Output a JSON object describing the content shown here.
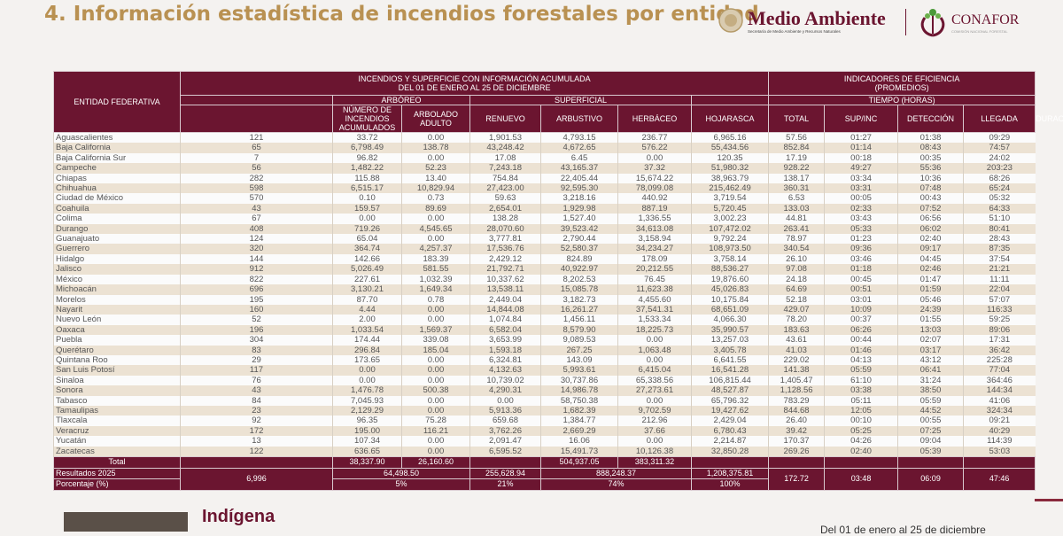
{
  "title": "4. Información estadística de incendios forestales por entidad",
  "logos": {
    "medio_ambiente": "Medio Ambiente",
    "medio_ambiente_sub": "Secretaría de Medio Ambiente y Recursos Naturales",
    "conafor": "CONAFOR",
    "conafor_sub": "COMISIÓN NACIONAL FORESTAL"
  },
  "colors": {
    "header_bg": "#6b1530",
    "title": "#b99152",
    "row_alt": "#ece2d3"
  },
  "table": {
    "headers": {
      "entidad": "ENTIDAD FEDERATIVA",
      "group_main": "INCENDIOS Y SUPERFICIE CON INFORMACIÓN ACUMULADA",
      "group_main_dates": "DEL 01 DE ENERO AL 25 DE DICIEMBRE",
      "group_indicators": "INDICADORES DE EFICIENCIA",
      "group_indicators_sub": "(PROMEDIOS)",
      "arboreo": "ARBÓREO",
      "superficial": "SUPERFICIAL",
      "tiempo": "TIEMPO  (HORAS)",
      "columns": [
        "NÚMERO DE INCENDIOS ACUMULADOS",
        "ARBOLADO ADULTO",
        "RENUEVO",
        "ARBUSTIVO",
        "HERBÁCEO",
        "HOJARASCA",
        "TOTAL",
        "SUP/INC",
        "DETECCIÓN",
        "LLEGADA",
        "DURACIÓN"
      ]
    },
    "rows": [
      [
        "Aguascalientes",
        "121",
        "33.72",
        "0.00",
        "1,901.53",
        "4,793.15",
        "236.77",
        "6,965.16",
        "57.56",
        "01:27",
        "01:38",
        "09:29"
      ],
      [
        "Baja California",
        "65",
        "6,798.49",
        "138.78",
        "43,248.42",
        "4,672.65",
        "576.22",
        "55,434.56",
        "852.84",
        "01:14",
        "08:43",
        "74:57"
      ],
      [
        "Baja California Sur",
        "7",
        "96.82",
        "0.00",
        "17.08",
        "6.45",
        "0.00",
        "120.35",
        "17.19",
        "00:18",
        "00:35",
        "24:02"
      ],
      [
        "Campeche",
        "56",
        "1,482.22",
        "52.23",
        "7,243.18",
        "43,165.37",
        "37.32",
        "51,980.32",
        "928.22",
        "49:27",
        "55:36",
        "203:23"
      ],
      [
        "Chiapas",
        "282",
        "115.88",
        "13.40",
        "754.84",
        "22,405.44",
        "15,674.22",
        "38,963.79",
        "138.17",
        "03:34",
        "10:36",
        "68:26"
      ],
      [
        "Chihuahua",
        "598",
        "6,515.17",
        "10,829.94",
        "27,423.00",
        "92,595.30",
        "78,099.08",
        "215,462.49",
        "360.31",
        "03:31",
        "07:48",
        "65:24"
      ],
      [
        "Ciudad de México",
        "570",
        "0.10",
        "0.73",
        "59.63",
        "3,218.16",
        "440.92",
        "3,719.54",
        "6.53",
        "00:05",
        "00:43",
        "05:32"
      ],
      [
        "Coahuila",
        "43",
        "159.57",
        "89.69",
        "2,654.01",
        "1,929.98",
        "887.19",
        "5,720.45",
        "133.03",
        "02:33",
        "07:52",
        "64:33"
      ],
      [
        "Colima",
        "67",
        "0.00",
        "0.00",
        "138.28",
        "1,527.40",
        "1,336.55",
        "3,002.23",
        "44.81",
        "03:43",
        "06:56",
        "51:10"
      ],
      [
        "Durango",
        "408",
        "719.26",
        "4,545.65",
        "28,070.60",
        "39,523.42",
        "34,613.08",
        "107,472.02",
        "263.41",
        "05:33",
        "06:02",
        "80:41"
      ],
      [
        "Guanajuato",
        "124",
        "65.04",
        "0.00",
        "3,777.81",
        "2,790.44",
        "3,158.94",
        "9,792.24",
        "78.97",
        "01:23",
        "02:40",
        "28:43"
      ],
      [
        "Guerrero",
        "320",
        "364.74",
        "4,257.37",
        "17,536.76",
        "52,580.37",
        "34,234.27",
        "108,973.50",
        "340.54",
        "09:36",
        "09:17",
        "87:35"
      ],
      [
        "Hidalgo",
        "144",
        "142.66",
        "183.39",
        "2,429.12",
        "824.89",
        "178.09",
        "3,758.14",
        "26.10",
        "03:46",
        "04:45",
        "37:54"
      ],
      [
        "Jalisco",
        "912",
        "5,026.49",
        "581.55",
        "21,792.71",
        "40,922.97",
        "20,212.55",
        "88,536.27",
        "97.08",
        "01:18",
        "02:46",
        "21:21"
      ],
      [
        "México",
        "822",
        "227.61",
        "1,032.39",
        "10,337.62",
        "8,202.53",
        "76.45",
        "19,876.60",
        "24.18",
        "00:45",
        "01:47",
        "11:11"
      ],
      [
        "Michoacán",
        "696",
        "3,130.21",
        "1,649.34",
        "13,538.11",
        "15,085.78",
        "11,623.38",
        "45,026.83",
        "64.69",
        "00:51",
        "01:59",
        "22:04"
      ],
      [
        "Morelos",
        "195",
        "87.70",
        "0.78",
        "2,449.04",
        "3,182.73",
        "4,455.60",
        "10,175.84",
        "52.18",
        "03:01",
        "05:46",
        "57:07"
      ],
      [
        "Nayarit",
        "160",
        "4.44",
        "0.00",
        "14,844.08",
        "16,261.27",
        "37,541.31",
        "68,651.09",
        "429.07",
        "10:09",
        "24:39",
        "116:33"
      ],
      [
        "Nuevo León",
        "52",
        "2.00",
        "0.00",
        "1,074.84",
        "1,456.11",
        "1,533.34",
        "4,066.30",
        "78.20",
        "00:37",
        "01:55",
        "59:25"
      ],
      [
        "Oaxaca",
        "196",
        "1,033.54",
        "1,569.37",
        "6,582.04",
        "8,579.90",
        "18,225.73",
        "35,990.57",
        "183.63",
        "06:26",
        "13:03",
        "89:06"
      ],
      [
        "Puebla",
        "304",
        "174.44",
        "339.08",
        "3,653.99",
        "9,089.53",
        "0.00",
        "13,257.03",
        "43.61",
        "00:44",
        "02:07",
        "17:31"
      ],
      [
        "Querétaro",
        "83",
        "296.84",
        "185.04",
        "1,593.18",
        "267.25",
        "1,063.48",
        "3,405.78",
        "41.03",
        "01:46",
        "03:17",
        "36:42"
      ],
      [
        "Quintana Roo",
        "29",
        "173.65",
        "0.00",
        "6,324.81",
        "143.09",
        "0.00",
        "6,641.55",
        "229.02",
        "04:13",
        "43:12",
        "225:28"
      ],
      [
        "San Luis Potosí",
        "117",
        "0.00",
        "0.00",
        "4,132.63",
        "5,993.61",
        "6,415.04",
        "16,541.28",
        "141.38",
        "05:59",
        "06:41",
        "77:04"
      ],
      [
        "Sinaloa",
        "76",
        "0.00",
        "0.00",
        "10,739.02",
        "30,737.86",
        "65,338.56",
        "106,815.44",
        "1,405.47",
        "61:10",
        "31:24",
        "364:46"
      ],
      [
        "Sonora",
        "43",
        "1,476.78",
        "500.38",
        "4,290.31",
        "14,986.78",
        "27,273.61",
        "48,527.87",
        "1,128.56",
        "03:38",
        "38:50",
        "144:34"
      ],
      [
        "Tabasco",
        "84",
        "7,045.93",
        "0.00",
        "0.00",
        "58,750.38",
        "0.00",
        "65,796.32",
        "783.29",
        "05:11",
        "05:59",
        "41:06"
      ],
      [
        "Tamaulipas",
        "23",
        "2,129.29",
        "0.00",
        "5,913.36",
        "1,682.39",
        "9,702.59",
        "19,427.62",
        "844.68",
        "12:05",
        "44:52",
        "324:34"
      ],
      [
        "Tlaxcala",
        "92",
        "96.35",
        "75.28",
        "659.68",
        "1,384.77",
        "212.96",
        "2,429.04",
        "26.40",
        "00:10",
        "00:55",
        "09:21"
      ],
      [
        "Veracruz",
        "172",
        "195.00",
        "116.21",
        "3,762.26",
        "2,669.29",
        "37.66",
        "6,780.43",
        "39.42",
        "05:25",
        "07:25",
        "40:29"
      ],
      [
        "Yucatán",
        "13",
        "107.34",
        "0.00",
        "2,091.47",
        "16.06",
        "0.00",
        "2,214.87",
        "170.37",
        "04:26",
        "09:04",
        "114:39"
      ],
      [
        "Zacatecas",
        "122",
        "636.65",
        "0.00",
        "6,595.52",
        "15,491.73",
        "10,126.38",
        "32,850.28",
        "269.26",
        "02:40",
        "05:39",
        "53:03"
      ]
    ],
    "totals": {
      "label": "Total",
      "arbolado": "38,337.90",
      "renuevo": "26,160.60",
      "herbaceo": "504,937.05",
      "hojarasca": "383,311.32"
    },
    "results": {
      "label": "Resultados 2025",
      "incendios": "6,996",
      "arboreo": "64,498.50",
      "arbustivo": "255,628.94",
      "superficial": "888,248.37",
      "total": "1,208,375.81",
      "sup_inc": "172.72",
      "deteccion": "03:48",
      "llegada": "06:09",
      "duracion": "47:46"
    },
    "percent": {
      "label": "Porcentaje (%)",
      "arboreo": "5%",
      "arbustivo": "21%",
      "superficial": "74%",
      "total": "100%"
    }
  },
  "footer": {
    "indigena": "Indígena",
    "note": "Del 01 de enero al 25 de diciembre"
  }
}
